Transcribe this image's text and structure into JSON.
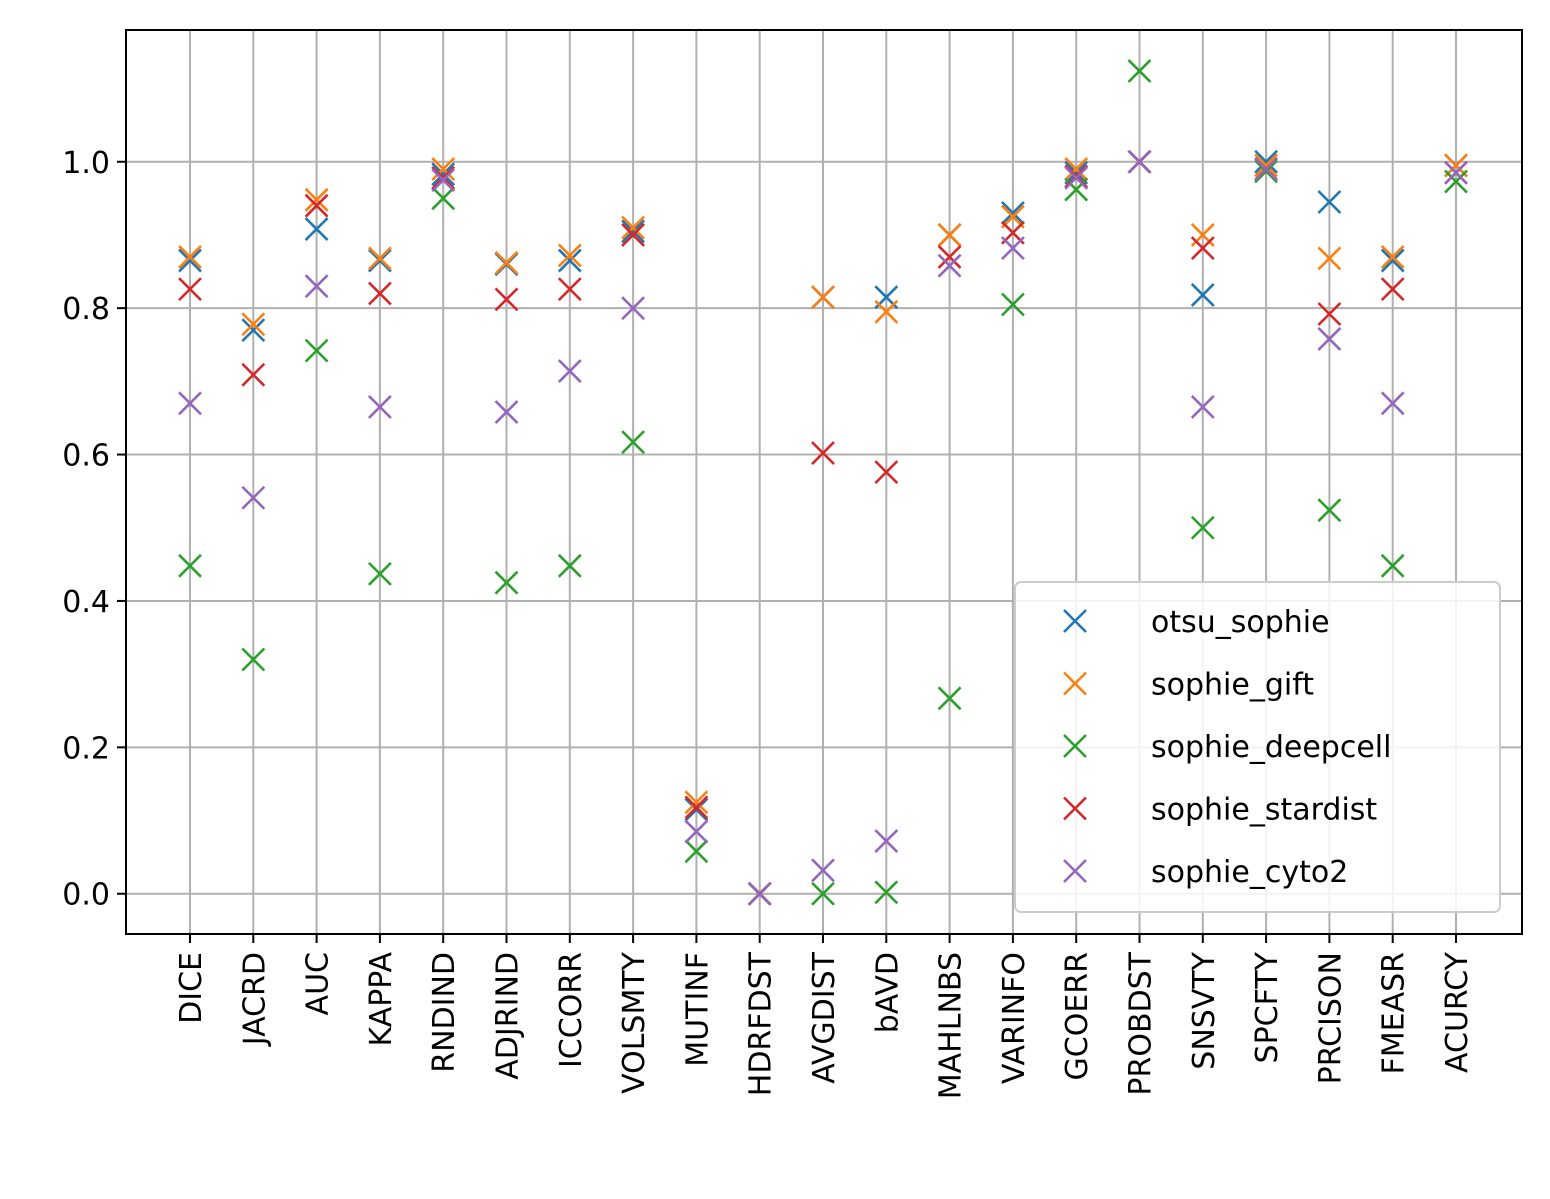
{
  "chart_data": {
    "type": "scatter",
    "marker": "x",
    "categories": [
      "DICE",
      "JACRD",
      "AUC",
      "KAPPA",
      "RNDIND",
      "ADJRIND",
      "ICCORR",
      "VOLSMTY",
      "MUTINF",
      "HDRFDST",
      "AVGDIST",
      "bAVD",
      "MAHLNBS",
      "VARINFO",
      "GCOERR",
      "PROBDST",
      "SNSVTY",
      "SPCFTY",
      "PRCISON",
      "FMEASR",
      "ACURCY"
    ],
    "ylim": [
      -0.055,
      1.18
    ],
    "yticks": [
      0.0,
      0.2,
      0.4,
      0.6,
      0.8,
      1.0
    ],
    "ytick_labels": [
      "0.0",
      "0.2",
      "0.4",
      "0.6",
      "0.8",
      "1.0"
    ],
    "grid": true,
    "legend_position": "lower-right",
    "series": [
      {
        "name": "otsu_sophie",
        "color": "#1f77b4",
        "values": [
          0.865,
          0.77,
          0.908,
          0.865,
          0.983,
          0.86,
          0.865,
          0.905,
          0.115,
          0.0,
          0.815,
          0.815,
          0.9,
          0.93,
          0.985,
          1.0,
          0.818,
          1.0,
          0.945,
          0.865,
          0.995
        ]
      },
      {
        "name": "sophie_gift",
        "color": "#ff7f0e",
        "values": [
          0.87,
          0.778,
          0.948,
          0.868,
          0.99,
          0.862,
          0.872,
          0.91,
          0.125,
          0.0,
          0.815,
          0.795,
          0.9,
          0.925,
          0.99,
          1.0,
          0.9,
          0.995,
          0.868,
          0.87,
          0.995
        ]
      },
      {
        "name": "sophie_deepcell",
        "color": "#2ca02c",
        "values": [
          0.448,
          0.32,
          0.742,
          0.437,
          0.95,
          0.425,
          0.448,
          0.617,
          0.058,
          0.0,
          0.0,
          0.002,
          0.267,
          0.805,
          0.962,
          1.124,
          0.5,
          0.987,
          0.524,
          0.448,
          0.973
        ]
      },
      {
        "name": "sophie_stardist",
        "color": "#d62728",
        "values": [
          0.826,
          0.709,
          0.94,
          0.82,
          0.978,
          0.812,
          0.826,
          0.9,
          0.118,
          0.0,
          0.602,
          0.576,
          0.87,
          0.903,
          0.98,
          1.0,
          0.882,
          0.99,
          0.792,
          0.826,
          0.985
        ]
      },
      {
        "name": "sophie_cyto2",
        "color": "#9467bd",
        "values": [
          0.67,
          0.541,
          0.83,
          0.665,
          0.975,
          0.658,
          0.714,
          0.8,
          0.085,
          0.0,
          0.032,
          0.072,
          0.858,
          0.882,
          0.978,
          1.0,
          0.665,
          0.99,
          0.758,
          0.67,
          0.985
        ]
      }
    ]
  }
}
